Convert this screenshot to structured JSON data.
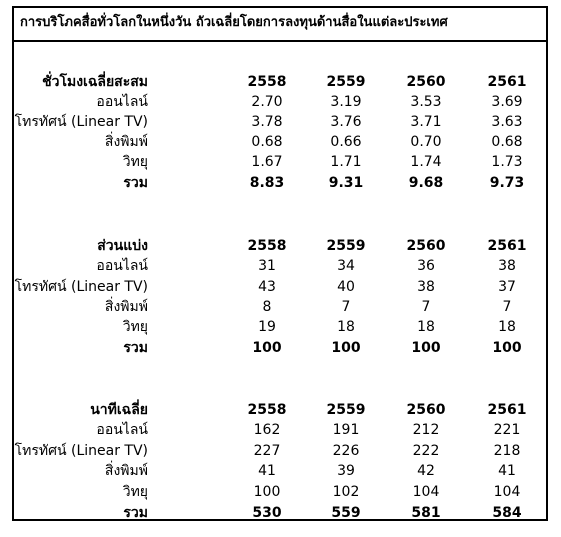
{
  "title": "การบริโภคสื่อทั่วโลกในหนึ่งวัน ถัวเฉลี่ยโดยการลงทุนด้านสื่อในแต่ละประเทศ",
  "years": [
    "2558",
    "2559",
    "2560",
    "2561"
  ],
  "sections": [
    {
      "heading": "ชั่วโมงเฉลี่ยสะสม",
      "rows": [
        {
          "label": "ออนไลน์",
          "values": [
            "2.70",
            "3.19",
            "3.53",
            "3.69"
          ]
        },
        {
          "label": "โทรทัศน์ (Linear TV)",
          "values": [
            "3.78",
            "3.76",
            "3.71",
            "3.63"
          ]
        },
        {
          "label": "สิ่งพิมพ์",
          "values": [
            "0.68",
            "0.66",
            "0.70",
            "0.68"
          ]
        },
        {
          "label": "วิทยุ",
          "values": [
            "1.67",
            "1.71",
            "1.74",
            "1.73"
          ]
        }
      ],
      "total": {
        "label": "รวม",
        "values": [
          "8.83",
          "9.31",
          "9.68",
          "9.73"
        ]
      }
    },
    {
      "heading": "ส่วนแบ่ง",
      "rows": [
        {
          "label": "ออนไลน์",
          "values": [
            "31",
            "34",
            "36",
            "38"
          ]
        },
        {
          "label": "โทรทัศน์ (Linear TV)",
          "values": [
            "43",
            "40",
            "38",
            "37"
          ]
        },
        {
          "label": "สิ่งพิมพ์",
          "values": [
            "8",
            "7",
            "7",
            "7"
          ]
        },
        {
          "label": "วิทยุ",
          "values": [
            "19",
            "18",
            "18",
            "18"
          ]
        }
      ],
      "total": {
        "label": "รวม",
        "values": [
          "100",
          "100",
          "100",
          "100"
        ]
      }
    },
    {
      "heading": "นาทีเฉลี่ย",
      "rows": [
        {
          "label": "ออนไลน์",
          "values": [
            "162",
            "191",
            "212",
            "221"
          ]
        },
        {
          "label": "โทรทัศน์ (Linear TV)",
          "values": [
            "227",
            "226",
            "222",
            "218"
          ]
        },
        {
          "label": "สิ่งพิมพ์",
          "values": [
            "41",
            "39",
            "42",
            "41"
          ]
        },
        {
          "label": "วิทยุ",
          "values": [
            "100",
            "102",
            "104",
            "104"
          ]
        }
      ],
      "total": {
        "label": "รวม",
        "values": [
          "530",
          "559",
          "581",
          "584"
        ]
      }
    }
  ]
}
